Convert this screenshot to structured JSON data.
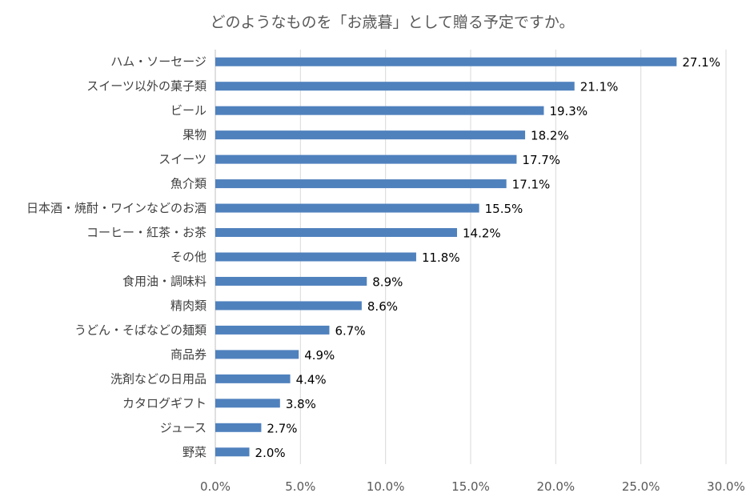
{
  "chart_data": {
    "type": "bar",
    "orientation": "horizontal",
    "title": "どのようなものを「お歳暮」として贈る予定ですか。",
    "xlabel": "",
    "ylabel": "",
    "xlim": [
      0,
      30
    ],
    "x_ticks": [
      "0.0%",
      "5.0%",
      "10.0%",
      "15.0%",
      "20.0%",
      "25.0%",
      "30.0%"
    ],
    "grid": true,
    "legend": "none",
    "bar_color": "#4f81bd",
    "categories": [
      "ハム・ソーセージ",
      "スイーツ以外の菓子類",
      "ビール",
      "果物",
      "スイーツ",
      "魚介類",
      "日本酒・焼酎・ワインなどのお酒",
      "コーヒー・紅茶・お茶",
      "その他",
      "食用油・調味料",
      "精肉類",
      "うどん・そばなどの麺類",
      "商品券",
      "洗剤などの日用品",
      "カタログギフト",
      "ジュース",
      "野菜"
    ],
    "values": [
      27.1,
      21.1,
      19.3,
      18.2,
      17.7,
      17.1,
      15.5,
      14.2,
      11.8,
      8.9,
      8.6,
      6.7,
      4.9,
      4.4,
      3.8,
      2.7,
      2.0
    ],
    "value_labels": [
      "27.1%",
      "21.1%",
      "19.3%",
      "18.2%",
      "17.7%",
      "17.1%",
      "15.5%",
      "14.2%",
      "11.8%",
      "8.9%",
      "8.6%",
      "6.7%",
      "4.9%",
      "4.4%",
      "3.8%",
      "2.7%",
      "2.0%"
    ]
  }
}
